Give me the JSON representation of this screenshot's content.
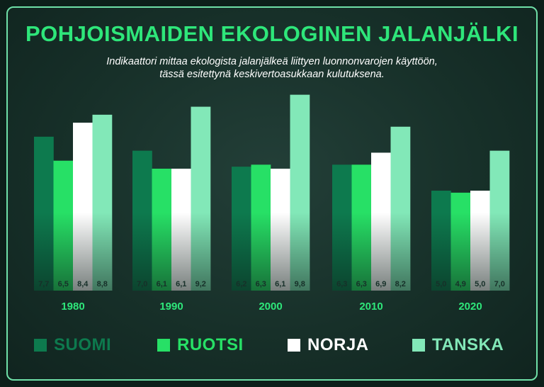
{
  "chart_data": {
    "type": "bar",
    "title": "POHJOISMAIDEN EKOLOGINEN JALANJÄLKI",
    "subtitle_line1": "Indikaattori mittaa ekologista jalanjälkeä liittyen luonnonvarojen käyttöön,",
    "subtitle_line2": "tässä esitettynä keskivertoasukkaan kulutuksena.",
    "xlabel": "",
    "ylabel": "",
    "ylim": [
      0,
      10.5
    ],
    "grid": false,
    "legend_position": "bottom",
    "categories": [
      "1980",
      "1990",
      "2000",
      "2010",
      "2020"
    ],
    "series": [
      {
        "name": "SUOMI",
        "color": "#0d7a4e",
        "label_color": "#173029",
        "values": [
          7.7,
          7.0,
          6.2,
          6.3,
          5.0
        ],
        "labels": [
          "7,7",
          "7,0",
          "6,2",
          "6,3",
          "5,0"
        ]
      },
      {
        "name": "RUOTSI",
        "color": "#27e066",
        "label_color": "#173029",
        "values": [
          6.5,
          6.1,
          6.3,
          6.3,
          4.9
        ],
        "labels": [
          "6,5",
          "6,1",
          "6,3",
          "6,3",
          "4,9"
        ]
      },
      {
        "name": "NORJA",
        "color": "#ffffff",
        "label_color": "#173029",
        "values": [
          8.4,
          6.1,
          6.1,
          6.9,
          5.0
        ],
        "labels": [
          "8,4",
          "6,1",
          "6,1",
          "6,9",
          "5,0"
        ]
      },
      {
        "name": "TANSKA",
        "color": "#82e8b8",
        "label_color": "#173029",
        "values": [
          8.8,
          9.2,
          9.8,
          8.2,
          7.0
        ],
        "labels": [
          "8,8",
          "9,2",
          "9,8",
          "8,2",
          "7,0"
        ]
      }
    ]
  }
}
